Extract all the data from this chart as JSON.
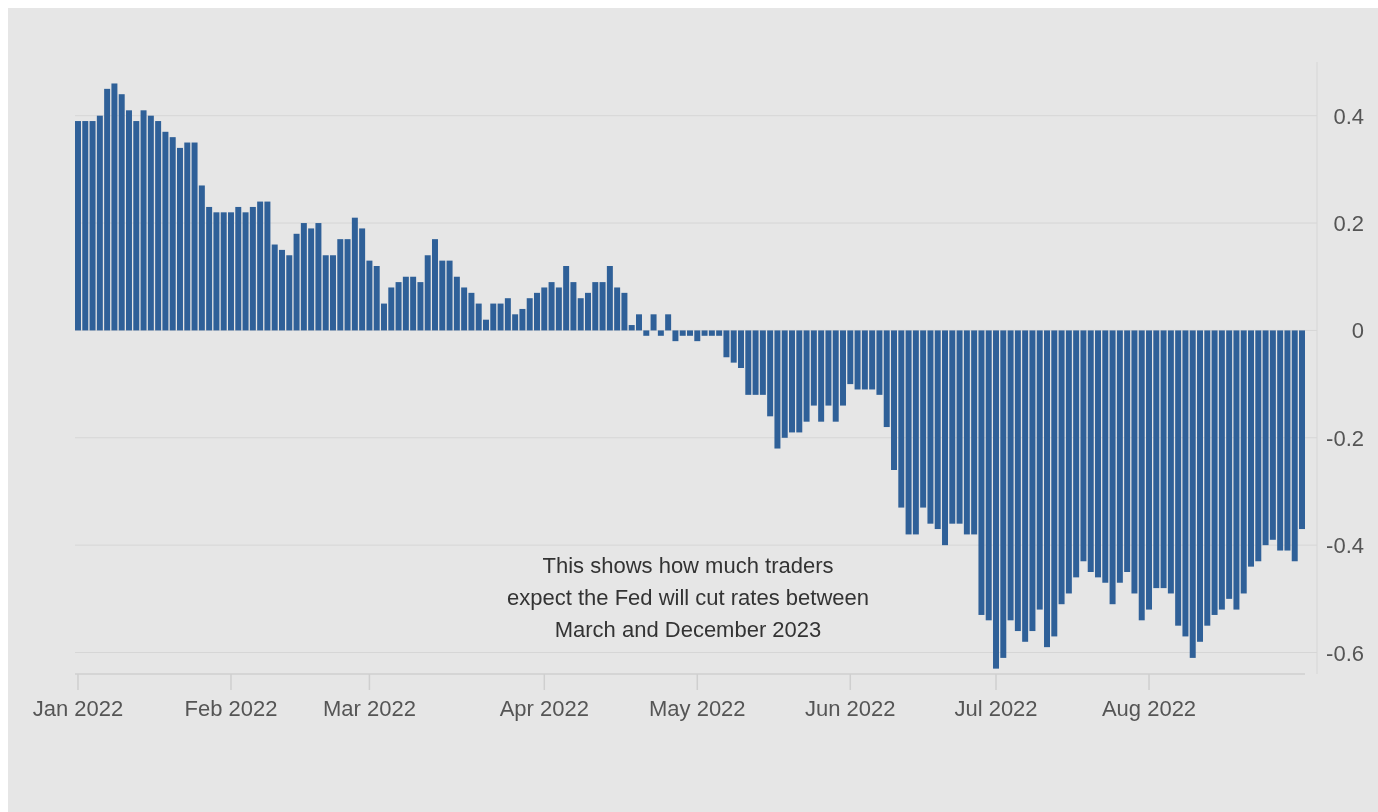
{
  "chart_data": {
    "type": "bar",
    "categories": [
      "Jan 2022",
      null,
      null,
      null,
      null,
      null,
      null,
      null,
      null,
      null,
      null,
      null,
      null,
      null,
      null,
      null,
      null,
      null,
      null,
      null,
      null,
      "Feb 2022",
      null,
      null,
      null,
      null,
      null,
      null,
      null,
      null,
      null,
      null,
      null,
      null,
      null,
      null,
      null,
      null,
      null,
      null,
      "Mar 2022",
      null,
      null,
      null,
      null,
      null,
      null,
      null,
      null,
      null,
      null,
      null,
      null,
      null,
      null,
      null,
      null,
      null,
      null,
      null,
      null,
      null,
      null,
      null,
      "Apr 2022",
      null,
      null,
      null,
      null,
      null,
      null,
      null,
      null,
      null,
      null,
      null,
      null,
      null,
      null,
      null,
      null,
      null,
      null,
      null,
      null,
      "May 2022",
      null,
      null,
      null,
      null,
      null,
      null,
      null,
      null,
      null,
      null,
      null,
      null,
      null,
      null,
      null,
      null,
      null,
      null,
      null,
      null,
      "Jun 2022",
      null,
      null,
      null,
      null,
      null,
      null,
      null,
      null,
      null,
      null,
      null,
      null,
      null,
      null,
      null,
      null,
      null,
      null,
      null,
      "Jul 2022",
      null,
      null,
      null,
      null,
      null,
      null,
      null,
      null,
      null,
      null,
      null,
      null,
      null,
      null,
      null,
      null,
      null,
      null,
      null,
      null,
      "Aug 2022",
      null,
      null,
      null,
      null,
      null,
      null,
      null,
      null,
      null,
      null,
      null,
      null,
      null,
      null,
      null,
      null,
      null,
      null,
      null,
      null,
      null
    ],
    "values": [
      0.39,
      0.39,
      0.39,
      0.4,
      0.45,
      0.46,
      0.44,
      0.41,
      0.39,
      0.41,
      0.4,
      0.39,
      0.37,
      0.36,
      0.34,
      0.35,
      0.35,
      0.27,
      0.23,
      0.22,
      0.22,
      0.22,
      0.23,
      0.22,
      0.23,
      0.24,
      0.24,
      0.16,
      0.15,
      0.14,
      0.18,
      0.2,
      0.19,
      0.2,
      0.14,
      0.14,
      0.17,
      0.17,
      0.21,
      0.19,
      0.13,
      0.12,
      0.05,
      0.08,
      0.09,
      0.1,
      0.1,
      0.09,
      0.14,
      0.17,
      0.13,
      0.13,
      0.1,
      0.08,
      0.07,
      0.05,
      0.02,
      0.05,
      0.05,
      0.06,
      0.03,
      0.04,
      0.06,
      0.07,
      0.08,
      0.09,
      0.08,
      0.12,
      0.09,
      0.06,
      0.07,
      0.09,
      0.09,
      0.12,
      0.08,
      0.07,
      0.01,
      0.03,
      -0.01,
      0.03,
      -0.01,
      0.03,
      -0.02,
      -0.01,
      -0.01,
      -0.02,
      -0.01,
      -0.01,
      -0.01,
      -0.05,
      -0.06,
      -0.07,
      -0.12,
      -0.12,
      -0.12,
      -0.16,
      -0.22,
      -0.2,
      -0.19,
      -0.19,
      -0.17,
      -0.14,
      -0.17,
      -0.14,
      -0.17,
      -0.14,
      -0.1,
      -0.11,
      -0.11,
      -0.11,
      -0.12,
      -0.18,
      -0.26,
      -0.33,
      -0.38,
      -0.38,
      -0.33,
      -0.36,
      -0.37,
      -0.4,
      -0.36,
      -0.36,
      -0.38,
      -0.38,
      -0.53,
      -0.54,
      -0.63,
      -0.61,
      -0.54,
      -0.56,
      -0.58,
      -0.56,
      -0.52,
      -0.59,
      -0.57,
      -0.51,
      -0.49,
      -0.46,
      -0.43,
      -0.45,
      -0.46,
      -0.47,
      -0.51,
      -0.47,
      -0.45,
      -0.49,
      -0.54,
      -0.52,
      -0.48,
      -0.48,
      -0.49,
      -0.55,
      -0.57,
      -0.61,
      -0.58,
      -0.55,
      -0.53,
      -0.52,
      -0.5,
      -0.52,
      -0.49,
      -0.44,
      -0.43,
      -0.4,
      -0.39,
      -0.41,
      -0.41,
      -0.43,
      -0.37
    ],
    "color": "#2f6098",
    "ylim": [
      -0.64,
      0.5
    ],
    "yticks": [
      {
        "value": -0.6,
        "label": "-0.6"
      },
      {
        "value": -0.4,
        "label": "-0.4"
      },
      {
        "value": -0.2,
        "label": "-0.2"
      },
      0,
      {
        "value": 0.2,
        "label": "0.2"
      },
      {
        "value": 0.4,
        "label": "0.4"
      }
    ],
    "grid": "y",
    "annotations": [
      "This shows how much traders\nexpect the Fed will cut rates between\nMarch and December 2023"
    ]
  }
}
